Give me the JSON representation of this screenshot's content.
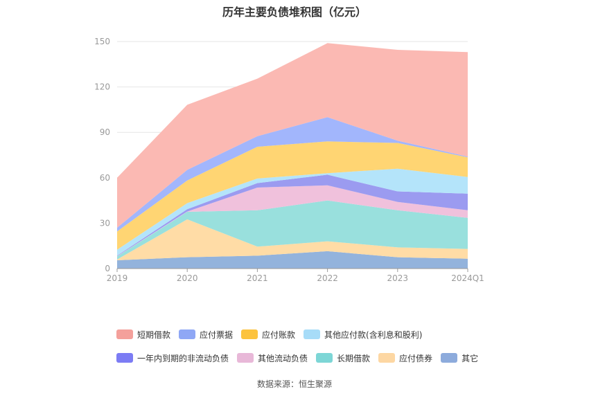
{
  "chart_data": {
    "type": "area",
    "stacked": true,
    "title": "历年主要负债堆积图（亿元）",
    "categories": [
      "2019",
      "2020",
      "2021",
      "2022",
      "2023",
      "2024Q1"
    ],
    "ylim": [
      0,
      150
    ],
    "yticks": [
      0,
      30,
      60,
      90,
      120,
      150
    ],
    "grid": true,
    "legend_position": "bottom",
    "series": [
      {
        "name": "其它",
        "color": "#93b3dc",
        "values": [
          5.5,
          7.5,
          8.5,
          11.5,
          7.5,
          6.5
        ]
      },
      {
        "name": "应付债券",
        "color": "#ffdca6",
        "values": [
          0.5,
          25,
          6,
          6.5,
          6.5,
          6.5
        ]
      },
      {
        "name": "长期借款",
        "color": "#99e0dd",
        "values": [
          2,
          5,
          24,
          27,
          24.5,
          20.5
        ]
      },
      {
        "name": "其他流动负债",
        "color": "#f0c1dc",
        "values": [
          0.2,
          0.2,
          15,
          10,
          5.5,
          5
        ]
      },
      {
        "name": "一年内到期的非流动负债",
        "color": "#9b9bf0",
        "values": [
          0.3,
          1.5,
          3,
          7,
          7,
          11
        ]
      },
      {
        "name": "其他应付款(含利息和股利)",
        "color": "#b4e4fa",
        "values": [
          4,
          4,
          3,
          1,
          15,
          11
        ]
      },
      {
        "name": "应付账款",
        "color": "#ffd573",
        "values": [
          12,
          15,
          21,
          21,
          17,
          13
        ]
      },
      {
        "name": "应付票据",
        "color": "#a2b6fc",
        "values": [
          2.5,
          7,
          7,
          16,
          1.5,
          0.5
        ]
      },
      {
        "name": "短期借款",
        "color": "#fbb9b3",
        "values": [
          33,
          43,
          38,
          49,
          60,
          69
        ]
      }
    ],
    "legend_order": [
      "短期借款",
      "应付票据",
      "应付账款",
      "其他应付款(含利息和股利)",
      "一年内到期的非流动负债",
      "其他流动负债",
      "长期借款",
      "应付债券",
      "其它"
    ],
    "legend_colors": {
      "短期借款": "#f4a09b",
      "应付票据": "#8fa7f5",
      "应付账款": "#fcc33e",
      "其他应付款(含利息和股利)": "#a7dcf8",
      "一年内到期的非流动负债": "#7c7cf4",
      "其他流动负债": "#e8b8d8",
      "长期借款": "#7dd6d6",
      "应付债券": "#fdd7a3",
      "其它": "#8dabdc"
    },
    "source": "数据来源：恒生聚源"
  }
}
